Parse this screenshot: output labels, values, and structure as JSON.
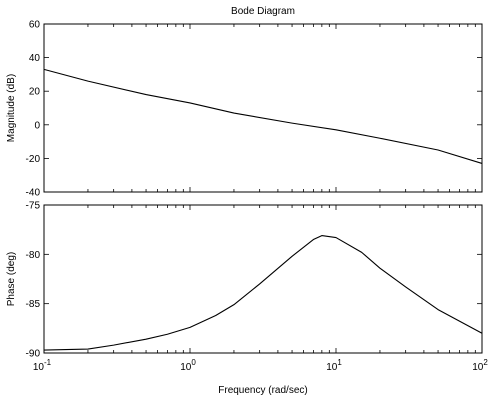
{
  "chart_data": {
    "type": "line",
    "title": "Bode Diagram",
    "xlabel": "Frequency  (rad/sec)",
    "x_scale": "log",
    "xlim": [
      0.1,
      100
    ],
    "x_ticks": [
      {
        "value": 0.1,
        "base": "10",
        "exp": "-1"
      },
      {
        "value": 1,
        "base": "10",
        "exp": "0"
      },
      {
        "value": 10,
        "base": "10",
        "exp": "1"
      },
      {
        "value": 100,
        "base": "10",
        "exp": "2"
      }
    ],
    "grid": false,
    "panels": [
      {
        "ylabel": "Magnitude (dB)",
        "ylim": [
          -40,
          60
        ],
        "y_ticks": [
          60,
          40,
          20,
          0,
          -20,
          -40
        ],
        "series": [
          {
            "x": [
              0.1,
              0.2,
              0.5,
              1,
              2,
              5,
              10,
              20,
              50,
              100
            ],
            "y": [
              33,
              26,
              18,
              13,
              7,
              1,
              -3,
              -8,
              -15,
              -23
            ]
          }
        ]
      },
      {
        "ylabel": "Phase (deg)",
        "ylim": [
          -90,
          -75
        ],
        "y_ticks": [
          -75,
          -80,
          -85,
          -90
        ],
        "series": [
          {
            "x": [
              0.1,
              0.2,
              0.3,
              0.5,
              0.7,
              1,
              1.5,
              2,
              3,
              5,
              7,
              8,
              10,
              15,
              20,
              30,
              50,
              100
            ],
            "y": [
              -89.7,
              -89.6,
              -89.2,
              -88.6,
              -88.1,
              -87.4,
              -86.2,
              -85.1,
              -83.0,
              -80.2,
              -78.5,
              -78.1,
              -78.3,
              -79.8,
              -81.4,
              -83.3,
              -85.6,
              -88.0
            ]
          }
        ]
      }
    ]
  }
}
